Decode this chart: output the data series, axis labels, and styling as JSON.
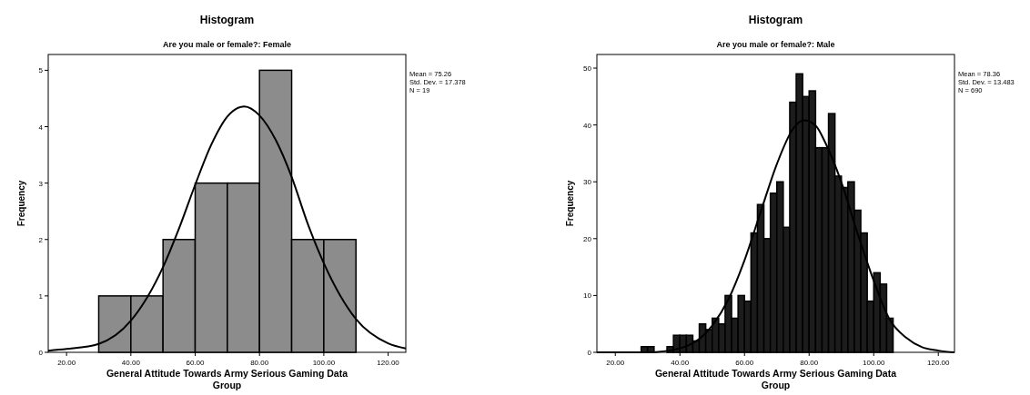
{
  "chart_data": [
    {
      "type": "histogram",
      "title": "Histogram",
      "subtitle": "Are you male or female?: Female",
      "xlabel": "General Attitude Towards Army Serious Gaming Data Group",
      "ylabel": "Frequency",
      "annotations": [
        "Mean = 75.26",
        "Std. Dev. = 17.378",
        "N = 19"
      ],
      "bins": [
        30,
        40,
        50,
        60,
        70,
        80,
        90,
        100,
        110
      ],
      "values": [
        1,
        1,
        2,
        3,
        3,
        5,
        2,
        2
      ],
      "color": "#8c8c8c",
      "series": [
        {
          "type": "line",
          "color": "#000000",
          "x": [
            14.3,
            20,
            30,
            40,
            50,
            55,
            60,
            65,
            70,
            75.26,
            80,
            85,
            90,
            95,
            100,
            110,
            120,
            125.5
          ],
          "values": [
            0.03,
            0.06,
            0.15,
            0.56,
            1.51,
            2.2,
            2.97,
            3.68,
            4.18,
            4.36,
            4.2,
            3.77,
            3.11,
            2.28,
            1.58,
            0.59,
            0.16,
            0.07
          ]
        }
      ],
      "xlim": [
        14.3,
        125.5
      ],
      "xticks": [
        {
          "value": 20,
          "label": "20.00"
        },
        {
          "value": 40,
          "label": "40.00"
        },
        {
          "value": 60,
          "label": "60.00"
        },
        {
          "value": 80,
          "label": "80.00"
        },
        {
          "value": 100,
          "label": "100.00"
        },
        {
          "value": 120,
          "label": "120.00"
        }
      ],
      "ylim": [
        0,
        5.28
      ],
      "yticks": [
        0,
        1,
        2,
        3,
        4,
        5
      ],
      "grid": false
    },
    {
      "type": "histogram",
      "title": "Histogram",
      "subtitle": "Are you male or female?: Male",
      "xlabel": "General Attitude Towards Army Serious Gaming Data Group",
      "ylabel": "Frequency",
      "annotations": [
        "Mean = 78.36",
        "Std. Dev. = 13.483",
        "N = 690"
      ],
      "bins": [
        28,
        30,
        32,
        34,
        36,
        38,
        40,
        42,
        44,
        46,
        48,
        50,
        52,
        54,
        56,
        58,
        60,
        62,
        64,
        66,
        68,
        70,
        72,
        74,
        76,
        78,
        80,
        82,
        84,
        86,
        88,
        90,
        92,
        94,
        96,
        98,
        100,
        102,
        104,
        106
      ],
      "values": [
        1,
        1,
        0,
        0,
        1,
        3,
        3,
        3,
        2,
        5,
        4,
        6,
        5,
        10,
        6,
        10,
        9,
        21,
        26,
        20,
        28,
        30,
        22,
        44,
        49,
        45,
        46,
        36,
        36,
        42,
        31,
        29,
        30,
        25,
        21,
        9,
        14,
        12,
        6
      ],
      "color": "#1c1c1c",
      "series": [
        {
          "type": "line",
          "color": "#000000",
          "x": [
            14.3,
            20,
            30,
            40,
            50,
            55,
            60,
            65,
            70,
            75,
            78.36,
            82,
            85,
            90,
            95,
            100,
            105,
            110,
            115,
            120,
            125
          ],
          "values": [
            0,
            0,
            0,
            0.7,
            4.7,
            9.3,
            16.2,
            24.7,
            33.1,
            39.3,
            40.8,
            39.9,
            36.9,
            29.9,
            20.9,
            12.6,
            5.7,
            2.6,
            0.9,
            0.3,
            0
          ]
        }
      ],
      "xlim": [
        14.3,
        125
      ],
      "xticks": [
        {
          "value": 20,
          "label": "20.00"
        },
        {
          "value": 40,
          "label": "40.00"
        },
        {
          "value": 60,
          "label": "60.00"
        },
        {
          "value": 80,
          "label": "80.00"
        },
        {
          "value": 100,
          "label": "100.00"
        },
        {
          "value": 120,
          "label": "120.00"
        }
      ],
      "ylim": [
        0,
        52.4
      ],
      "yticks": [
        0,
        10,
        20,
        30,
        40,
        50
      ],
      "grid": false
    }
  ]
}
